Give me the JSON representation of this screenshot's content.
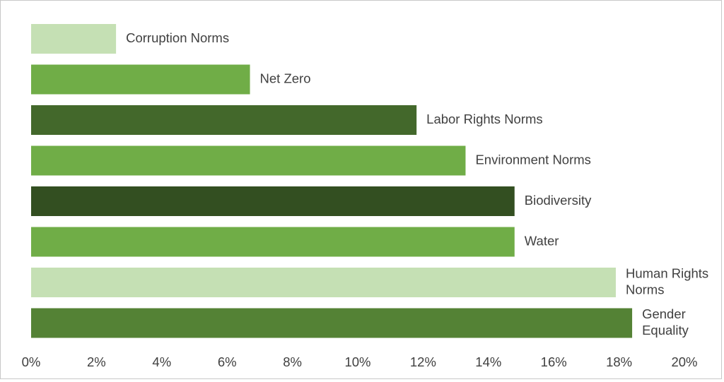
{
  "chart_data": {
    "type": "bar",
    "orientation": "horizontal",
    "categories": [
      "Corruption Norms",
      "Net Zero",
      "Labor Rights Norms",
      "Environment Norms",
      "Biodiversity",
      "Water",
      "Human Rights Norms",
      "Gender Equality"
    ],
    "values": [
      2.6,
      6.7,
      11.8,
      13.3,
      14.8,
      14.8,
      17.9,
      18.4
    ],
    "bar_colors": [
      "#c5e0b4",
      "#70ad47",
      "#43682b",
      "#70ad47",
      "#334f21",
      "#70ad47",
      "#c5e0b4",
      "#548235"
    ],
    "value_unit": "%",
    "xlim": [
      0,
      20
    ],
    "x_ticks": [
      "0%",
      "2%",
      "4%",
      "6%",
      "8%",
      "10%",
      "12%",
      "14%",
      "16%",
      "18%",
      "20%"
    ],
    "category_labels_position": "end-of-bar",
    "title": "",
    "xlabel": "",
    "ylabel": "",
    "legend": "none",
    "grid": false
  }
}
